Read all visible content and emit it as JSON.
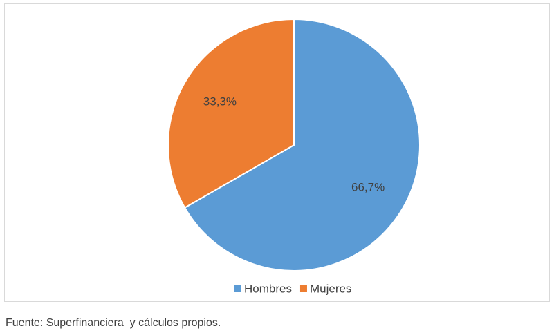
{
  "chart_data": {
    "type": "pie",
    "categories": [
      "Hombres",
      "Mujeres"
    ],
    "values": [
      66.7,
      33.3
    ],
    "value_labels": [
      "66,7%",
      "33,3%"
    ],
    "colors": [
      "#5b9bd5",
      "#ed7d31"
    ],
    "legend": "bottom",
    "source": "Fuente: Superfinanciera  y cálculos propios."
  }
}
